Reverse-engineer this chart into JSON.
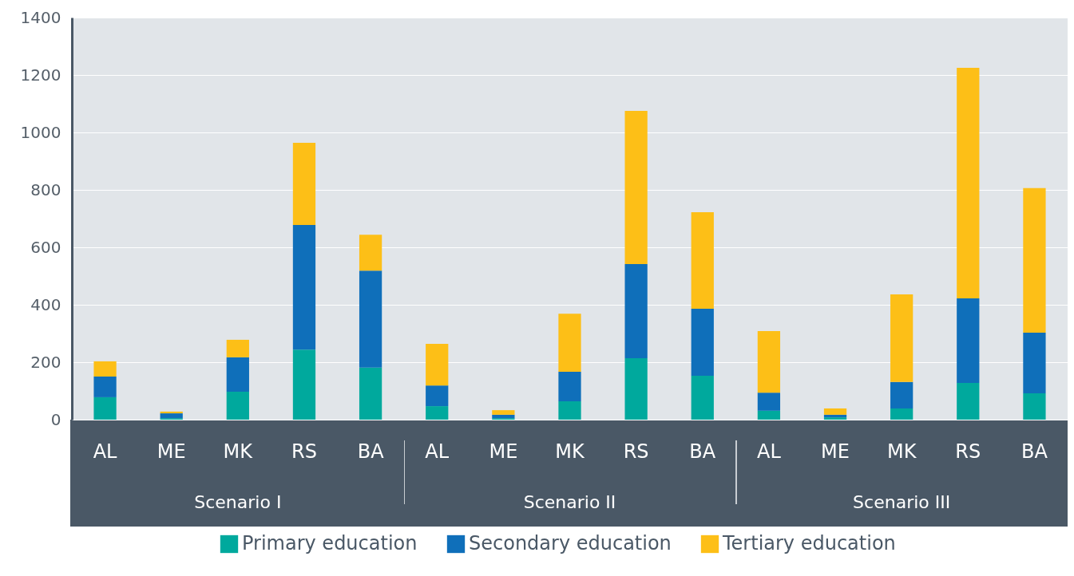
{
  "chart_data": {
    "type": "bar",
    "stacked": true,
    "categories": [
      "AL",
      "ME",
      "MK",
      "RS",
      "BA",
      "AL",
      "ME",
      "MK",
      "RS",
      "BA",
      "AL",
      "ME",
      "MK",
      "RS",
      "BA"
    ],
    "series": [
      {
        "name": "Primary education",
        "color": "#00a99d",
        "values": [
          78,
          5,
          97,
          244,
          181,
          47,
          5,
          64,
          214,
          153,
          31,
          8,
          39,
          128,
          92
        ]
      },
      {
        "name": "Secondary education",
        "color": "#0f6fba",
        "values": [
          72,
          17,
          120,
          434,
          338,
          72,
          12,
          103,
          328,
          233,
          63,
          9,
          92,
          294,
          211
        ]
      },
      {
        "name": "Tertiary education",
        "color": "#fdbf17",
        "values": [
          53,
          6,
          61,
          286,
          125,
          145,
          16,
          202,
          533,
          336,
          214,
          22,
          305,
          803,
          503
        ]
      }
    ],
    "ylim": [
      0,
      1400
    ],
    "yticks": [
      0,
      200,
      400,
      600,
      800,
      1000,
      1200,
      1400
    ],
    "grid": "y",
    "legend": "bottom",
    "annotations": [
      "Scenario I",
      "Scenario II",
      "Scenario III"
    ]
  }
}
